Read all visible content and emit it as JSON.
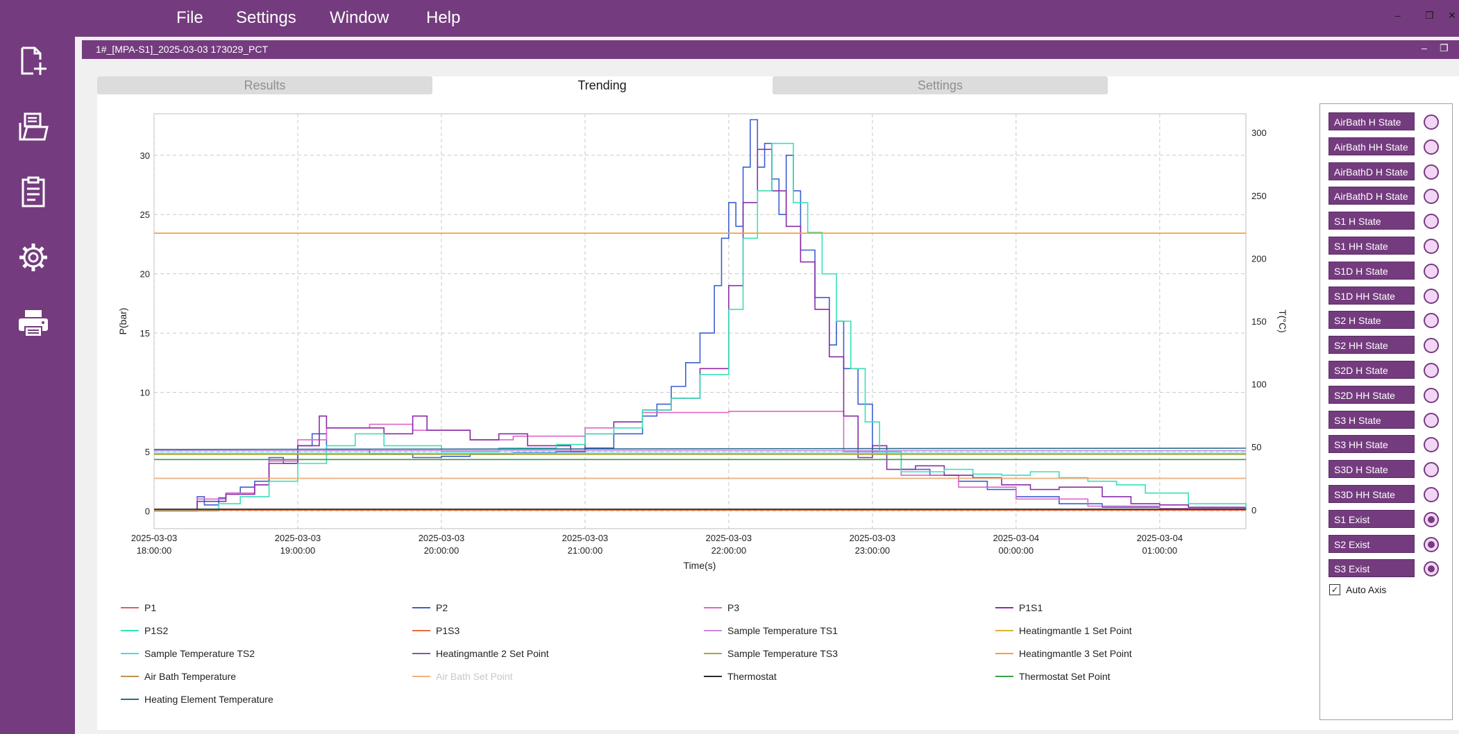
{
  "menu": {
    "file": "File",
    "settings": "Settings",
    "window": "Window",
    "help": "Help"
  },
  "window_title": "1#_[MPA-S1]_2025-03-03 173029_PCT",
  "tabs": [
    {
      "label": "Results",
      "active": false
    },
    {
      "label": "Trending",
      "active": true
    },
    {
      "label": "Settings",
      "active": false
    }
  ],
  "sidebar": [
    {
      "icon": "new-document-icon"
    },
    {
      "icon": "open-folder-icon"
    },
    {
      "icon": "report-icon"
    },
    {
      "icon": "gear-icon"
    },
    {
      "icon": "printer-icon"
    }
  ],
  "state_panel": {
    "items": [
      {
        "label": "AirBath H State",
        "on": false
      },
      {
        "label": "AirBath HH State",
        "on": false
      },
      {
        "label": "AirBathD H State",
        "on": false
      },
      {
        "label": "AirBathD H State",
        "on": false
      },
      {
        "label": "S1 H State",
        "on": false
      },
      {
        "label": "S1 HH State",
        "on": false
      },
      {
        "label": "S1D H State",
        "on": false
      },
      {
        "label": "S1D HH State",
        "on": false
      },
      {
        "label": "S2 H State",
        "on": false
      },
      {
        "label": "S2 HH State",
        "on": false
      },
      {
        "label": "S2D H State",
        "on": false
      },
      {
        "label": "S2D HH State",
        "on": false
      },
      {
        "label": "S3 H State",
        "on": false
      },
      {
        "label": "S3 HH State",
        "on": false
      },
      {
        "label": "S3D H State",
        "on": false
      },
      {
        "label": "S3D HH State",
        "on": false
      },
      {
        "label": "S1 Exist",
        "on": true
      },
      {
        "label": "S2 Exist",
        "on": true
      },
      {
        "label": "S3 Exist",
        "on": true
      }
    ],
    "auto_axis_label": "Auto Axis",
    "auto_axis_checked": true
  },
  "chart_data": {
    "type": "line",
    "xlabel": "Time(s)",
    "ylabel": "P(bar)",
    "y2label": "T(°C)",
    "x_ticks": [
      [
        "2025-03-03",
        "18:00:00"
      ],
      [
        "2025-03-03",
        "19:00:00"
      ],
      [
        "2025-03-03",
        "20:00:00"
      ],
      [
        "2025-03-03",
        "21:00:00"
      ],
      [
        "2025-03-03",
        "22:00:00"
      ],
      [
        "2025-03-03",
        "23:00:00"
      ],
      [
        "2025-03-04",
        "00:00:00"
      ],
      [
        "2025-03-04",
        "01:00:00"
      ]
    ],
    "xlim_hours": [
      18.0,
      25.6
    ],
    "ylim": [
      -1.5,
      33.5
    ],
    "y_ticks": [
      0,
      5,
      10,
      15,
      20,
      25,
      30
    ],
    "y2lim": [
      -15,
      315
    ],
    "y2_ticks": [
      0,
      50,
      100,
      150,
      200,
      250,
      300
    ],
    "grid": true,
    "legend_position": "bottom",
    "series": [
      {
        "name": "P1",
        "color": "#e8585a",
        "axis": "P",
        "style": "flat",
        "values": [
          [
            18.0,
            0.1
          ],
          [
            25.6,
            0.1
          ]
        ]
      },
      {
        "name": "P2",
        "color": "#3a5fd0",
        "axis": "P",
        "style": "step",
        "values": [
          [
            18.0,
            0
          ],
          [
            18.25,
            0
          ],
          [
            18.3,
            1.2
          ],
          [
            18.35,
            0.5
          ],
          [
            18.45,
            1.1
          ],
          [
            18.5,
            1.5
          ],
          [
            18.6,
            2.0
          ],
          [
            18.7,
            2.5
          ],
          [
            18.8,
            4.5
          ],
          [
            18.9,
            4.0
          ],
          [
            19.0,
            5.5
          ],
          [
            19.1,
            6.5
          ],
          [
            19.2,
            5.2
          ],
          [
            19.5,
            4.8
          ],
          [
            19.8,
            4.5
          ],
          [
            20.0,
            4.6
          ],
          [
            20.2,
            4.8
          ],
          [
            20.5,
            4.9
          ],
          [
            20.8,
            5.0
          ],
          [
            21.0,
            5.3
          ],
          [
            21.2,
            6.5
          ],
          [
            21.4,
            8.0
          ],
          [
            21.5,
            9.0
          ],
          [
            21.6,
            10.5
          ],
          [
            21.7,
            12.5
          ],
          [
            21.8,
            15.0
          ],
          [
            21.9,
            19.0
          ],
          [
            21.95,
            23.0
          ],
          [
            22.0,
            26.0
          ],
          [
            22.05,
            24.0
          ],
          [
            22.1,
            29.0
          ],
          [
            22.15,
            33.0
          ],
          [
            22.2,
            29.0
          ],
          [
            22.25,
            31.0
          ],
          [
            22.3,
            28.0
          ],
          [
            22.35,
            25.0
          ],
          [
            22.4,
            30.0
          ],
          [
            22.45,
            27.0
          ],
          [
            22.5,
            22.0
          ],
          [
            22.6,
            18.0
          ],
          [
            22.7,
            14.0
          ],
          [
            22.75,
            16.0
          ],
          [
            22.8,
            12.0
          ],
          [
            22.9,
            9.0
          ],
          [
            23.0,
            5.0
          ],
          [
            23.2,
            3.5
          ],
          [
            23.4,
            3.0
          ],
          [
            23.6,
            2.5
          ],
          [
            23.8,
            1.8
          ],
          [
            24.0,
            1.2
          ],
          [
            24.3,
            0.6
          ],
          [
            24.6,
            0.3
          ],
          [
            25.0,
            0.2
          ],
          [
            25.6,
            0.1
          ]
        ]
      },
      {
        "name": "P3",
        "color": "#e064c8",
        "axis": "P",
        "style": "step",
        "values": [
          [
            18.0,
            0
          ],
          [
            18.25,
            0
          ],
          [
            18.3,
            1.0
          ],
          [
            18.5,
            1.5
          ],
          [
            18.7,
            2.2
          ],
          [
            18.8,
            4.2
          ],
          [
            19.0,
            6.0
          ],
          [
            19.2,
            7.0
          ],
          [
            19.5,
            7.3
          ],
          [
            19.8,
            6.8
          ],
          [
            20.2,
            6.0
          ],
          [
            20.5,
            6.3
          ],
          [
            21.0,
            7.0
          ],
          [
            21.2,
            7.5
          ],
          [
            21.4,
            8.3
          ],
          [
            22.0,
            8.4
          ],
          [
            22.7,
            8.4
          ],
          [
            22.8,
            5.0
          ],
          [
            23.2,
            3.0
          ],
          [
            23.6,
            2.0
          ],
          [
            24.0,
            1.0
          ],
          [
            24.5,
            0.4
          ],
          [
            25.0,
            0.2
          ],
          [
            25.6,
            0.1
          ]
        ]
      },
      {
        "name": "P1S1",
        "color": "#8a2ca6",
        "axis": "P",
        "style": "step",
        "values": [
          [
            18.0,
            0
          ],
          [
            18.25,
            0
          ],
          [
            18.3,
            0.8
          ],
          [
            18.5,
            1.4
          ],
          [
            18.7,
            2.2
          ],
          [
            18.8,
            4.0
          ],
          [
            19.0,
            5.5
          ],
          [
            19.15,
            8.0
          ],
          [
            19.2,
            7.0
          ],
          [
            19.6,
            6.5
          ],
          [
            19.8,
            8.0
          ],
          [
            19.9,
            6.8
          ],
          [
            20.2,
            6.0
          ],
          [
            20.4,
            6.5
          ],
          [
            20.6,
            5.5
          ],
          [
            20.9,
            5.0
          ],
          [
            21.0,
            6.5
          ],
          [
            21.2,
            7.5
          ],
          [
            21.4,
            8.5
          ],
          [
            21.6,
            9.5
          ],
          [
            21.8,
            12.0
          ],
          [
            22.0,
            19.0
          ],
          [
            22.1,
            26.0
          ],
          [
            22.2,
            30.5
          ],
          [
            22.3,
            27.0
          ],
          [
            22.4,
            24.0
          ],
          [
            22.5,
            21.0
          ],
          [
            22.6,
            17.0
          ],
          [
            22.7,
            13.0
          ],
          [
            22.8,
            8.0
          ],
          [
            22.9,
            4.5
          ],
          [
            23.0,
            5.5
          ],
          [
            23.1,
            3.5
          ],
          [
            23.3,
            3.8
          ],
          [
            23.5,
            3.0
          ],
          [
            23.7,
            2.8
          ],
          [
            23.9,
            2.2
          ],
          [
            24.1,
            1.8
          ],
          [
            24.3,
            2.0
          ],
          [
            24.6,
            1.2
          ],
          [
            24.8,
            0.6
          ],
          [
            25.0,
            0.5
          ],
          [
            25.2,
            0.3
          ],
          [
            25.6,
            0.1
          ]
        ]
      },
      {
        "name": "P1S2",
        "color": "#38e0b8",
        "axis": "P",
        "style": "step",
        "values": [
          [
            18.0,
            0
          ],
          [
            18.3,
            0
          ],
          [
            18.45,
            0.6
          ],
          [
            18.6,
            1.2
          ],
          [
            18.8,
            2.5
          ],
          [
            19.0,
            4.0
          ],
          [
            19.2,
            5.5
          ],
          [
            19.4,
            6.5
          ],
          [
            19.6,
            5.5
          ],
          [
            20.0,
            5.0
          ],
          [
            20.4,
            5.3
          ],
          [
            20.8,
            5.6
          ],
          [
            21.0,
            6.5
          ],
          [
            21.2,
            7.0
          ],
          [
            21.4,
            8.5
          ],
          [
            21.6,
            9.5
          ],
          [
            21.8,
            11.5
          ],
          [
            22.0,
            17.0
          ],
          [
            22.1,
            23.0
          ],
          [
            22.2,
            27.0
          ],
          [
            22.3,
            31.0
          ],
          [
            22.45,
            26.0
          ],
          [
            22.55,
            23.5
          ],
          [
            22.65,
            20.0
          ],
          [
            22.75,
            16.0
          ],
          [
            22.85,
            12.0
          ],
          [
            22.95,
            7.5
          ],
          [
            23.05,
            5.0
          ],
          [
            23.2,
            3.3
          ],
          [
            23.5,
            3.5
          ],
          [
            23.7,
            3.1
          ],
          [
            23.9,
            3.0
          ],
          [
            24.1,
            3.3
          ],
          [
            24.3,
            2.8
          ],
          [
            24.5,
            2.5
          ],
          [
            24.7,
            2.2
          ],
          [
            24.9,
            1.5
          ],
          [
            25.2,
            0.6
          ],
          [
            25.6,
            0.1
          ]
        ]
      },
      {
        "name": "P1S3",
        "color": "#e86a3a",
        "axis": "P",
        "style": "flat",
        "values": [
          [
            18.0,
            0.05
          ],
          [
            25.6,
            0.05
          ]
        ]
      },
      {
        "name": "Sample Temperature TS1",
        "color": "#c58be0",
        "axis": "T",
        "style": "flat",
        "values": [
          [
            18.0,
            47
          ],
          [
            25.6,
            47
          ]
        ]
      },
      {
        "name": "Heatingmantle 1 Set Point",
        "color": "#d8b238",
        "axis": "T",
        "style": "flat",
        "values": [
          [
            18.0,
            220
          ],
          [
            25.6,
            220
          ]
        ]
      },
      {
        "name": "Sample Temperature TS2",
        "color": "#4ad8e0",
        "axis": "T",
        "style": "flat",
        "values": [
          [
            18.0,
            45
          ],
          [
            25.6,
            45
          ]
        ]
      },
      {
        "name": "Heatingmantle 2 Set Point",
        "color": "#7a5c9a",
        "axis": "T",
        "style": "flat",
        "values": [
          [
            18.0,
            40
          ],
          [
            25.6,
            40
          ]
        ]
      },
      {
        "name": "Sample Temperature TS3",
        "color": "#a8a838",
        "axis": "T",
        "style": "flat",
        "values": [
          [
            18.0,
            44
          ],
          [
            25.6,
            44
          ]
        ]
      },
      {
        "name": "Heatingmantle 3 Set Point",
        "color": "#f0a040",
        "axis": "T",
        "style": "flat",
        "values": [
          [
            18.0,
            220
          ],
          [
            25.6,
            220
          ]
        ]
      },
      {
        "name": "Air Bath Temperature",
        "color": "#c09050",
        "axis": "T",
        "style": "flat",
        "values": [
          [
            18.0,
            25
          ],
          [
            25.6,
            25
          ]
        ]
      },
      {
        "name": "Air Bath Set Point",
        "color": "#f0b080",
        "axis": "T",
        "style": "flat",
        "values": [
          [
            18.0,
            25
          ],
          [
            25.6,
            25
          ]
        ],
        "dimmed": true
      },
      {
        "name": "Thermostat",
        "color": "#2a2a2a",
        "axis": "T",
        "style": "flat",
        "values": [
          [
            18.0,
            0.5
          ],
          [
            25.6,
            0.5
          ]
        ]
      },
      {
        "name": "Thermostat Set Point",
        "color": "#3aa048",
        "axis": "T",
        "style": "flat",
        "values": [
          [
            18.0,
            40
          ],
          [
            25.6,
            40
          ]
        ]
      },
      {
        "name": "Heating Element Temperature",
        "color": "#2a6a8a",
        "axis": "T",
        "style": "flat",
        "values": [
          [
            18.0,
            48
          ],
          [
            25.6,
            49
          ]
        ]
      }
    ]
  }
}
